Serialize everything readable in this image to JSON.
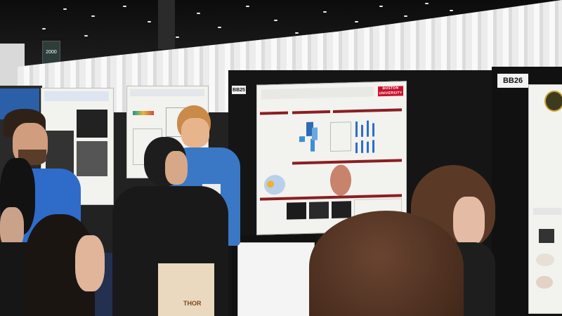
{
  "scene": {
    "description_note": "",
    "booth_tags": {
      "left": "BB25",
      "right": "BB26"
    },
    "overhead_sign": "2000",
    "logo_text": "BOSTON UNIVERSITY",
    "bag_text": "THOR"
  },
  "colors": {
    "backdrop": "#f5f5f5",
    "panel": "#151515",
    "floor": "#23304f",
    "section_header": "#8a1e22",
    "shirt_blue": "#3a78c6"
  }
}
